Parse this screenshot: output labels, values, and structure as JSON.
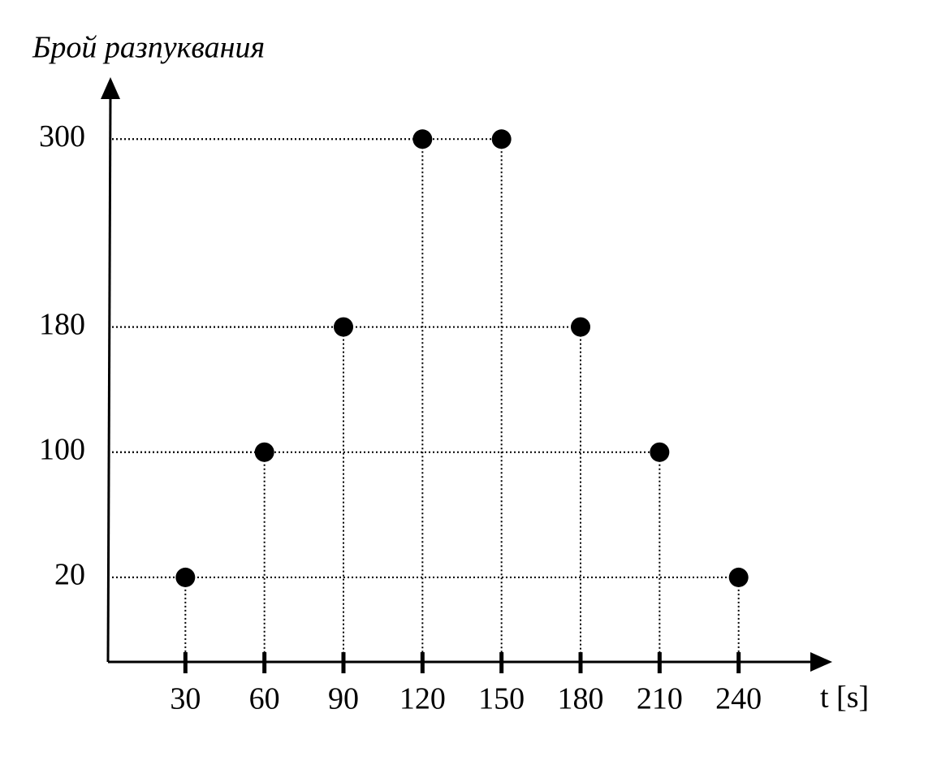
{
  "chart_data": {
    "type": "scatter",
    "y_label": "Брой разпуквания",
    "x_label": "t [s]",
    "x": [
      30,
      60,
      90,
      120,
      150,
      180,
      210,
      240
    ],
    "series": [
      {
        "color": "#000000",
        "values": [
          20,
          100,
          180,
          300,
          300,
          180,
          100,
          20
        ]
      }
    ],
    "xlim": [
      0,
      274
    ],
    "xticks": [
      30,
      60,
      90,
      120,
      150,
      180,
      210,
      240
    ],
    "ylim": [
      -34,
      337
    ],
    "yticks": [
      20,
      100,
      180,
      300
    ],
    "grid": true
  }
}
